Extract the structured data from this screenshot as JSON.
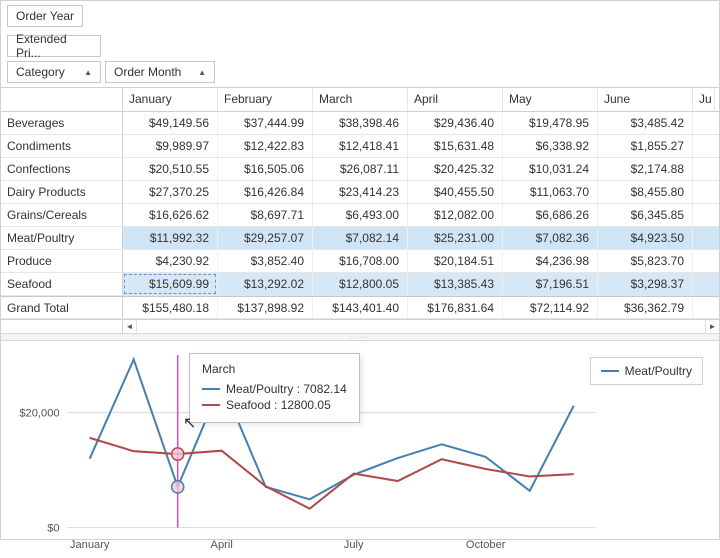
{
  "filters": {
    "year": "Order Year",
    "price": "Extended Pri...",
    "category": "Category",
    "month": "Order Month"
  },
  "months": [
    "January",
    "February",
    "March",
    "April",
    "May",
    "June",
    "Ju"
  ],
  "rows": [
    "Beverages",
    "Condiments",
    "Confections",
    "Dairy Products",
    "Grains/Cereals",
    "Meat/Poultry",
    "Produce",
    "Seafood"
  ],
  "total_label": "Grand Total",
  "data": {
    "Beverages": [
      "$49,149.56",
      "$37,444.99",
      "$38,398.46",
      "$29,436.40",
      "$19,478.95",
      "$3,485.42"
    ],
    "Condiments": [
      "$9,989.97",
      "$12,422.83",
      "$12,418.41",
      "$15,631.48",
      "$6,338.92",
      "$1,855.27"
    ],
    "Confections": [
      "$20,510.55",
      "$16,505.06",
      "$26,087.11",
      "$20,425.32",
      "$10,031.24",
      "$2,174.88"
    ],
    "Dairy Products": [
      "$27,370.25",
      "$16,426.84",
      "$23,414.23",
      "$40,455.50",
      "$11,063.70",
      "$8,455.80"
    ],
    "Grains/Cereals": [
      "$16,626.62",
      "$8,697.71",
      "$6,493.00",
      "$12,082.00",
      "$6,686.26",
      "$6,345.85"
    ],
    "Meat/Poultry": [
      "$11,992.32",
      "$29,257.07",
      "$7,082.14",
      "$25,231.00",
      "$7,082.36",
      "$4,923.50"
    ],
    "Produce": [
      "$4,230.92",
      "$3,852.40",
      "$16,708.00",
      "$20,184.51",
      "$4,236.98",
      "$5,823.70"
    ],
    "Seafood": [
      "$15,609.99",
      "$13,292.02",
      "$12,800.05",
      "$13,385.43",
      "$7,196.51",
      "$3,298.37"
    ]
  },
  "totals": [
    "$155,480.18",
    "$137,898.92",
    "$143,401.40",
    "$176,831.64",
    "$72,114.92",
    "$36,362.79"
  ],
  "highlight_rows": [
    "Meat/Poultry",
    "Seafood"
  ],
  "dashed_cell": {
    "row": "Seafood",
    "col": 0
  },
  "chart": {
    "type": "line",
    "x_labels": [
      "January",
      "April",
      "July",
      "October"
    ],
    "x_tick_positions": [
      0.5,
      3.5,
      6.5,
      9.5
    ],
    "y_ticks": [
      {
        "v": 0,
        "label": "$0"
      },
      {
        "v": 20000,
        "label": "$20,000"
      }
    ],
    "ylim": [
      0,
      30000
    ],
    "x_count": 12,
    "crosshair_x": 2,
    "series": [
      {
        "name": "Meat/Poultry",
        "color": "#4a7fb0",
        "values": [
          11992,
          29257,
          7082,
          25231,
          7082,
          4923,
          9200,
          12100,
          14500,
          12300,
          6400,
          21200
        ]
      },
      {
        "name": "Seafood",
        "color": "#b04a4a",
        "values": [
          15610,
          13292,
          12800,
          13385,
          7197,
          3298,
          9400,
          8100,
          11900,
          10200,
          8900,
          9300
        ]
      }
    ],
    "legend_series": "Meat/Poultry",
    "tooltip": {
      "title": "March",
      "items": [
        {
          "name": "Meat/Poultry",
          "value": "7082.14",
          "color": "#4a7fb0"
        },
        {
          "name": "Seafood",
          "value": "12800.05",
          "color": "#b04a4a"
        }
      ]
    },
    "plot": {
      "bg": "#ffffff",
      "grid": "#d9d9d9",
      "crosshair": "#c94fc9",
      "marker_fill": "#f4c6d8"
    },
    "font": {
      "axis": 11
    }
  }
}
